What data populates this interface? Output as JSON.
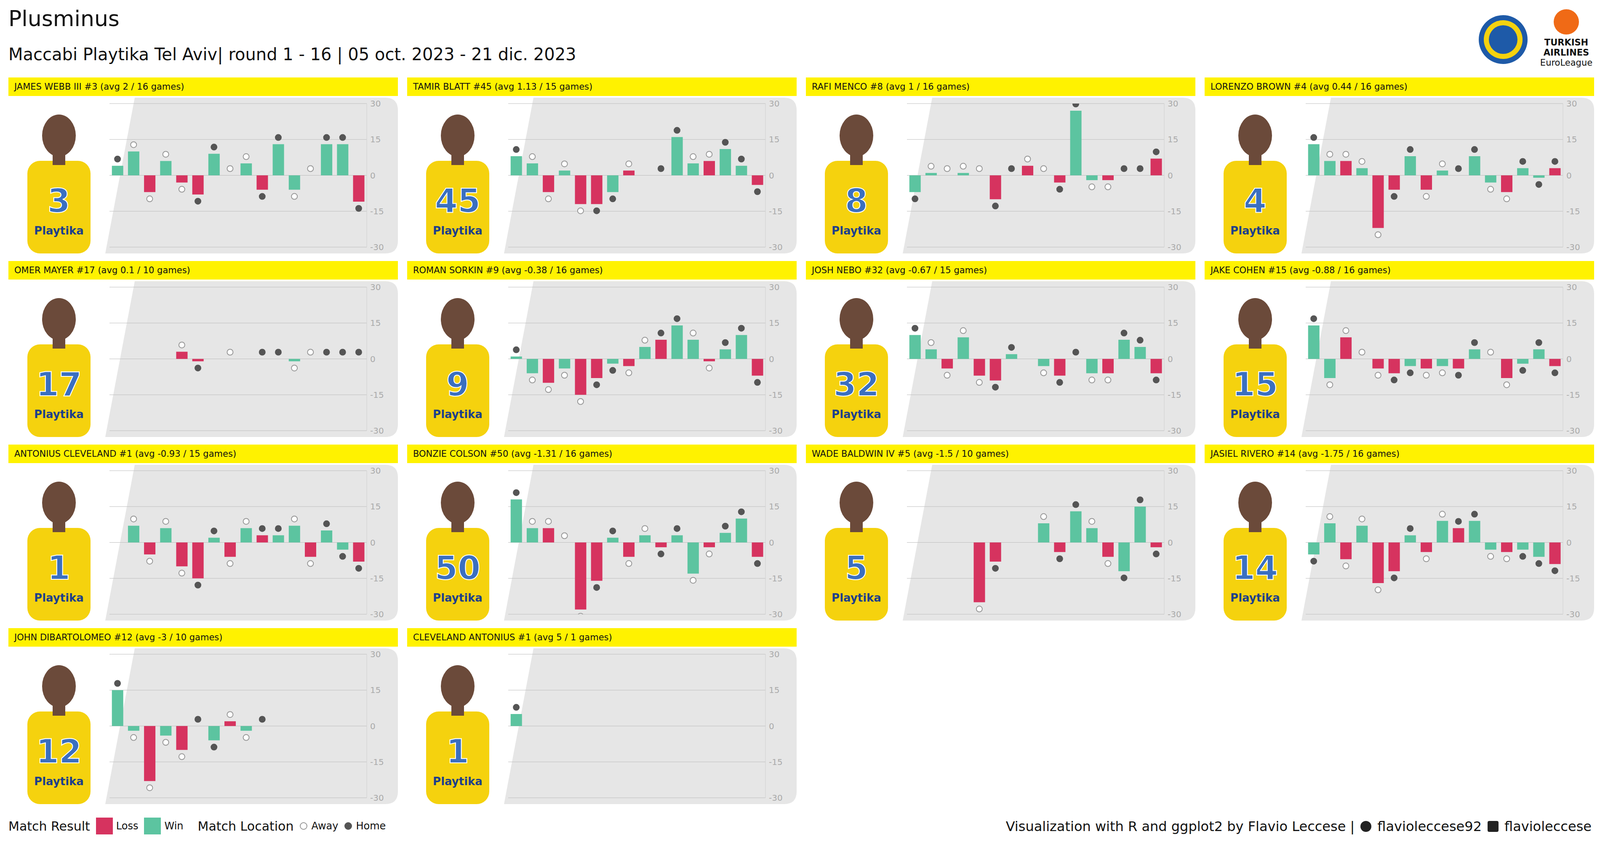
{
  "title": "Plusminus",
  "subtitle": "Maccabi Playtika Tel Aviv| round 1 - 16 | 05 oct. 2023 - 21 dic. 2023",
  "logo_text": [
    "TURKISH",
    "AIRLINES",
    "EuroLeague"
  ],
  "sponsor": "Playtika",
  "legend_groups": [
    {
      "title": "Match Result",
      "items": [
        {
          "name": "Loss",
          "color": "#d6335f"
        },
        {
          "name": "Win",
          "color": "#5cc4a0"
        }
      ]
    },
    {
      "title": "Match Location",
      "items": [
        {
          "name": "Away",
          "marker": "hollow"
        },
        {
          "name": "Home",
          "marker": "filled"
        }
      ]
    }
  ],
  "credit": [
    "Visualization with R and ggplot2 by Flavio Leccese |",
    "flavioleccese92",
    "flavioleccese"
  ],
  "chart_data": [
    {
      "type": "bar",
      "title": "JAMES WEBB III #3 (avg 2 / 16 games)",
      "jersey": "3",
      "categories": [
        null,
        null,
        null,
        null,
        null,
        null,
        null,
        null,
        null,
        null,
        null,
        null,
        null,
        null,
        null,
        null
      ],
      "values": [
        4,
        10,
        -7,
        6,
        -3,
        -8,
        9,
        0,
        5,
        -6,
        13,
        -6,
        0,
        13,
        13,
        -11
      ],
      "result": [
        "Win",
        "Win",
        "Loss",
        "Win",
        "Loss",
        "Loss",
        "Win",
        "Loss",
        "Win",
        "Loss",
        "Win",
        "Win",
        "Loss",
        "Win",
        "Win",
        "Loss"
      ],
      "location": [
        "Home",
        "Away",
        "Away",
        "Away",
        "Away",
        "Home",
        "Home",
        "Away",
        "Away",
        "Home",
        "Home",
        "Away",
        "Away",
        "Home",
        "Home",
        "Home"
      ],
      "ylim": [
        -30,
        30
      ],
      "yticks": [
        -30,
        -15,
        0,
        15,
        30
      ],
      "grid": true,
      "tick_labels": "y"
    },
    {
      "type": "bar",
      "title": "TAMIR BLATT #45 (avg 1.13 / 15 games)",
      "jersey": "45",
      "categories": [
        null,
        null,
        null,
        null,
        null,
        null,
        null,
        null,
        null,
        null,
        null,
        null,
        null,
        null,
        null,
        null
      ],
      "values": [
        8,
        5,
        -7,
        2,
        -12,
        -12,
        -7,
        2,
        null,
        0,
        16,
        5,
        6,
        11,
        4,
        -4
      ],
      "result": [
        "Win",
        "Win",
        "Loss",
        "Win",
        "Loss",
        "Loss",
        "Win",
        "Loss",
        "Win",
        "Loss",
        "Win",
        "Win",
        "Loss",
        "Win",
        "Win",
        "Loss"
      ],
      "location": [
        "Home",
        "Away",
        "Away",
        "Away",
        "Away",
        "Home",
        "Home",
        "Away",
        "Away",
        "Home",
        "Home",
        "Away",
        "Away",
        "Home",
        "Home",
        "Home"
      ],
      "ylim": [
        -30,
        30
      ],
      "yticks": [
        -30,
        -15,
        0,
        15,
        30
      ],
      "grid": true,
      "tick_labels": "y"
    },
    {
      "type": "bar",
      "title": "RAFI MENCO #8 (avg 1 / 16 games)",
      "jersey": "8",
      "categories": [
        null,
        null,
        null,
        null,
        null,
        null,
        null,
        null,
        null,
        null,
        null,
        null,
        null,
        null,
        null,
        null
      ],
      "values": [
        -7,
        1,
        0,
        1,
        0,
        -10,
        0,
        4,
        0,
        -3,
        27,
        -2,
        -2,
        0,
        0,
        7
      ],
      "result": [
        "Win",
        "Win",
        "Loss",
        "Win",
        "Loss",
        "Loss",
        "Win",
        "Loss",
        "Win",
        "Loss",
        "Win",
        "Win",
        "Loss",
        "Win",
        "Win",
        "Loss"
      ],
      "location": [
        "Home",
        "Away",
        "Away",
        "Away",
        "Away",
        "Home",
        "Home",
        "Away",
        "Away",
        "Home",
        "Home",
        "Away",
        "Away",
        "Home",
        "Home",
        "Home"
      ],
      "ylim": [
        -30,
        30
      ],
      "yticks": [
        -30,
        -15,
        0,
        15,
        30
      ],
      "grid": true,
      "tick_labels": "y"
    },
    {
      "type": "bar",
      "title": "LORENZO BROWN #4 (avg 0.44 / 16 games)",
      "jersey": "4",
      "categories": [
        null,
        null,
        null,
        null,
        null,
        null,
        null,
        null,
        null,
        null,
        null,
        null,
        null,
        null,
        null,
        null
      ],
      "values": [
        13,
        6,
        6,
        3,
        -22,
        -6,
        8,
        -6,
        2,
        0,
        8,
        -3,
        -7,
        3,
        -1,
        3
      ],
      "result": [
        "Win",
        "Win",
        "Loss",
        "Win",
        "Loss",
        "Loss",
        "Win",
        "Loss",
        "Win",
        "Loss",
        "Win",
        "Win",
        "Loss",
        "Win",
        "Win",
        "Loss"
      ],
      "location": [
        "Home",
        "Away",
        "Away",
        "Away",
        "Away",
        "Home",
        "Home",
        "Away",
        "Away",
        "Home",
        "Home",
        "Away",
        "Away",
        "Home",
        "Home",
        "Home"
      ],
      "ylim": [
        -30,
        30
      ],
      "yticks": [
        -30,
        -15,
        0,
        15,
        30
      ],
      "grid": true,
      "tick_labels": "y"
    },
    {
      "type": "bar",
      "title": "OMER MAYER #17 (avg 0.1 / 10 games)",
      "jersey": "17",
      "categories": [
        null,
        null,
        null,
        null,
        null,
        null,
        null,
        null,
        null,
        null,
        null,
        null,
        null,
        null,
        null,
        null
      ],
      "values": [
        null,
        null,
        null,
        null,
        3,
        -1,
        null,
        0,
        null,
        0,
        0,
        -1,
        0,
        0,
        0,
        0
      ],
      "result": [
        "Win",
        "Win",
        "Loss",
        "Win",
        "Loss",
        "Loss",
        "Win",
        "Loss",
        "Win",
        "Loss",
        "Win",
        "Win",
        "Loss",
        "Win",
        "Win",
        "Loss"
      ],
      "location": [
        "Home",
        "Away",
        "Away",
        "Away",
        "Away",
        "Home",
        "Home",
        "Away",
        "Away",
        "Home",
        "Home",
        "Away",
        "Away",
        "Home",
        "Home",
        "Home"
      ],
      "ylim": [
        -30,
        30
      ],
      "yticks": [
        -30,
        -15,
        0,
        15,
        30
      ],
      "grid": true,
      "tick_labels": "y"
    },
    {
      "type": "bar",
      "title": "ROMAN SORKIN #9 (avg -0.38 / 16 games)",
      "jersey": "9",
      "categories": [
        null,
        null,
        null,
        null,
        null,
        null,
        null,
        null,
        null,
        null,
        null,
        null,
        null,
        null,
        null,
        null
      ],
      "values": [
        1,
        -6,
        -10,
        -4,
        -15,
        -8,
        -2,
        -3,
        5,
        8,
        14,
        8,
        -1,
        4,
        10,
        -7
      ],
      "result": [
        "Win",
        "Win",
        "Loss",
        "Win",
        "Loss",
        "Loss",
        "Win",
        "Loss",
        "Win",
        "Loss",
        "Win",
        "Win",
        "Loss",
        "Win",
        "Win",
        "Loss"
      ],
      "location": [
        "Home",
        "Away",
        "Away",
        "Away",
        "Away",
        "Home",
        "Home",
        "Away",
        "Away",
        "Home",
        "Home",
        "Away",
        "Away",
        "Home",
        "Home",
        "Home"
      ],
      "ylim": [
        -30,
        30
      ],
      "yticks": [
        -30,
        -15,
        0,
        15,
        30
      ],
      "grid": true,
      "tick_labels": "y"
    },
    {
      "type": "bar",
      "title": "JOSH NEBO #32 (avg -0.67 / 15 games)",
      "jersey": "32",
      "categories": [
        null,
        null,
        null,
        null,
        null,
        null,
        null,
        null,
        null,
        null,
        null,
        null,
        null,
        null,
        null,
        null
      ],
      "values": [
        10,
        4,
        -4,
        9,
        -7,
        -9,
        2,
        null,
        -3,
        -7,
        0,
        -6,
        -6,
        8,
        5,
        -6
      ],
      "result": [
        "Win",
        "Win",
        "Loss",
        "Win",
        "Loss",
        "Loss",
        "Win",
        "Loss",
        "Win",
        "Loss",
        "Win",
        "Win",
        "Loss",
        "Win",
        "Win",
        "Loss"
      ],
      "location": [
        "Home",
        "Away",
        "Away",
        "Away",
        "Away",
        "Home",
        "Home",
        "Away",
        "Away",
        "Home",
        "Home",
        "Away",
        "Away",
        "Home",
        "Home",
        "Home"
      ],
      "ylim": [
        -30,
        30
      ],
      "yticks": [
        -30,
        -15,
        0,
        15,
        30
      ],
      "grid": true,
      "tick_labels": "y"
    },
    {
      "type": "bar",
      "title": "JAKE COHEN #15 (avg -0.88 / 16 games)",
      "jersey": "15",
      "categories": [
        null,
        null,
        null,
        null,
        null,
        null,
        null,
        null,
        null,
        null,
        null,
        null,
        null,
        null,
        null,
        null
      ],
      "values": [
        14,
        -8,
        9,
        0,
        -4,
        -6,
        -3,
        -4,
        -3,
        -4,
        4,
        0,
        -8,
        -2,
        4,
        -3
      ],
      "result": [
        "Win",
        "Win",
        "Loss",
        "Win",
        "Loss",
        "Loss",
        "Win",
        "Loss",
        "Win",
        "Loss",
        "Win",
        "Win",
        "Loss",
        "Win",
        "Win",
        "Loss"
      ],
      "location": [
        "Home",
        "Away",
        "Away",
        "Away",
        "Away",
        "Home",
        "Home",
        "Away",
        "Away",
        "Home",
        "Home",
        "Away",
        "Away",
        "Home",
        "Home",
        "Home"
      ],
      "ylim": [
        -30,
        30
      ],
      "yticks": [
        -30,
        -15,
        0,
        15,
        30
      ],
      "grid": true,
      "tick_labels": "y"
    },
    {
      "type": "bar",
      "title": "ANTONIUS CLEVELAND #1 (avg -0.93 / 15 games)",
      "jersey": "1",
      "categories": [
        null,
        null,
        null,
        null,
        null,
        null,
        null,
        null,
        null,
        null,
        null,
        null,
        null,
        null,
        null,
        null
      ],
      "values": [
        null,
        7,
        -5,
        6,
        -10,
        -15,
        2,
        -6,
        6,
        3,
        3,
        7,
        -6,
        5,
        -3,
        -8
      ],
      "result": [
        "Win",
        "Win",
        "Loss",
        "Win",
        "Loss",
        "Loss",
        "Win",
        "Loss",
        "Win",
        "Loss",
        "Win",
        "Win",
        "Loss",
        "Win",
        "Win",
        "Loss"
      ],
      "location": [
        "Home",
        "Away",
        "Away",
        "Away",
        "Away",
        "Home",
        "Home",
        "Away",
        "Away",
        "Home",
        "Home",
        "Away",
        "Away",
        "Home",
        "Home",
        "Home"
      ],
      "ylim": [
        -30,
        30
      ],
      "yticks": [
        -30,
        -15,
        0,
        15,
        30
      ],
      "grid": true,
      "tick_labels": "y"
    },
    {
      "type": "bar",
      "title": "BONZIE COLSON #50 (avg -1.31 / 16 games)",
      "jersey": "50",
      "categories": [
        null,
        null,
        null,
        null,
        null,
        null,
        null,
        null,
        null,
        null,
        null,
        null,
        null,
        null,
        null,
        null
      ],
      "values": [
        18,
        6,
        6,
        0,
        -28,
        -16,
        2,
        -6,
        3,
        -2,
        3,
        -13,
        -2,
        4,
        10,
        -6
      ],
      "result": [
        "Win",
        "Win",
        "Loss",
        "Win",
        "Loss",
        "Loss",
        "Win",
        "Loss",
        "Win",
        "Loss",
        "Win",
        "Win",
        "Loss",
        "Win",
        "Win",
        "Loss"
      ],
      "location": [
        "Home",
        "Away",
        "Away",
        "Away",
        "Away",
        "Home",
        "Home",
        "Away",
        "Away",
        "Home",
        "Home",
        "Away",
        "Away",
        "Home",
        "Home",
        "Home"
      ],
      "ylim": [
        -30,
        30
      ],
      "yticks": [
        -30,
        -15,
        0,
        15,
        30
      ],
      "grid": true,
      "tick_labels": "y"
    },
    {
      "type": "bar",
      "title": "WADE BALDWIN IV #5 (avg -1.5 / 10 games)",
      "jersey": "5",
      "categories": [
        null,
        null,
        null,
        null,
        null,
        null,
        null,
        null,
        null,
        null,
        null,
        null,
        null,
        null,
        null,
        null
      ],
      "values": [
        null,
        null,
        null,
        null,
        -25,
        -8,
        null,
        null,
        8,
        -4,
        13,
        6,
        -6,
        -12,
        15,
        -2
      ],
      "result": [
        "Win",
        "Win",
        "Loss",
        "Win",
        "Loss",
        "Loss",
        "Win",
        "Loss",
        "Win",
        "Loss",
        "Win",
        "Win",
        "Loss",
        "Win",
        "Win",
        "Loss"
      ],
      "location": [
        "Home",
        "Away",
        "Away",
        "Away",
        "Away",
        "Home",
        "Home",
        "Away",
        "Away",
        "Home",
        "Home",
        "Away",
        "Away",
        "Home",
        "Home",
        "Home"
      ],
      "ylim": [
        -30,
        30
      ],
      "yticks": [
        -30,
        -15,
        0,
        15,
        30
      ],
      "grid": true,
      "tick_labels": "y"
    },
    {
      "type": "bar",
      "title": "JASIEL RIVERO #14 (avg -1.75 / 16 games)",
      "jersey": "14",
      "categories": [
        null,
        null,
        null,
        null,
        null,
        null,
        null,
        null,
        null,
        null,
        null,
        null,
        null,
        null,
        null,
        null
      ],
      "values": [
        -5,
        8,
        -7,
        7,
        -17,
        -12,
        3,
        -4,
        9,
        6,
        9,
        -3,
        -4,
        -3,
        -6,
        -9
      ],
      "result": [
        "Win",
        "Win",
        "Loss",
        "Win",
        "Loss",
        "Loss",
        "Win",
        "Loss",
        "Win",
        "Loss",
        "Win",
        "Win",
        "Loss",
        "Win",
        "Win",
        "Loss"
      ],
      "location": [
        "Home",
        "Away",
        "Away",
        "Away",
        "Away",
        "Home",
        "Home",
        "Away",
        "Away",
        "Home",
        "Home",
        "Away",
        "Away",
        "Home",
        "Home",
        "Home"
      ],
      "ylim": [
        -30,
        30
      ],
      "yticks": [
        -30,
        -15,
        0,
        15,
        30
      ],
      "grid": true,
      "tick_labels": "y"
    },
    {
      "type": "bar",
      "title": "JOHN DIBARTOLOMEO #12 (avg -3 / 10 games)",
      "jersey": "12",
      "categories": [
        null,
        null,
        null,
        null,
        null,
        null,
        null,
        null,
        null,
        null,
        null,
        null,
        null,
        null,
        null,
        null
      ],
      "values": [
        15,
        -2,
        -23,
        -4,
        -10,
        0,
        -6,
        2,
        -2,
        0,
        null,
        null,
        null,
        null,
        null,
        null
      ],
      "result": [
        "Win",
        "Win",
        "Loss",
        "Win",
        "Loss",
        "Loss",
        "Win",
        "Loss",
        "Win",
        "Loss",
        "Win",
        "Win",
        "Loss",
        "Win",
        "Win",
        "Loss"
      ],
      "location": [
        "Home",
        "Away",
        "Away",
        "Away",
        "Away",
        "Home",
        "Home",
        "Away",
        "Away",
        "Home",
        "Home",
        "Away",
        "Away",
        "Home",
        "Home",
        "Home"
      ],
      "ylim": [
        -30,
        30
      ],
      "yticks": [
        -30,
        -15,
        0,
        15,
        30
      ],
      "grid": true,
      "tick_labels": "y"
    },
    {
      "type": "bar",
      "title": "CLEVELAND ANTONIUS #1 (avg 5 / 1 games)",
      "jersey": "1",
      "categories": [
        null,
        null,
        null,
        null,
        null,
        null,
        null,
        null,
        null,
        null,
        null,
        null,
        null,
        null,
        null,
        null
      ],
      "values": [
        5,
        null,
        null,
        null,
        null,
        null,
        null,
        null,
        null,
        null,
        null,
        null,
        null,
        null,
        null,
        null
      ],
      "result": [
        "Win",
        "Win",
        "Loss",
        "Win",
        "Loss",
        "Loss",
        "Win",
        "Loss",
        "Win",
        "Loss",
        "Win",
        "Win",
        "Loss",
        "Win",
        "Win",
        "Loss"
      ],
      "location": [
        "Home",
        "Away",
        "Away",
        "Away",
        "Away",
        "Home",
        "Home",
        "Away",
        "Away",
        "Home",
        "Home",
        "Away",
        "Away",
        "Home",
        "Home",
        "Home"
      ],
      "ylim": [
        -30,
        30
      ],
      "yticks": [
        -30,
        -15,
        0,
        15,
        30
      ],
      "grid": true,
      "tick_labels": "y"
    }
  ]
}
